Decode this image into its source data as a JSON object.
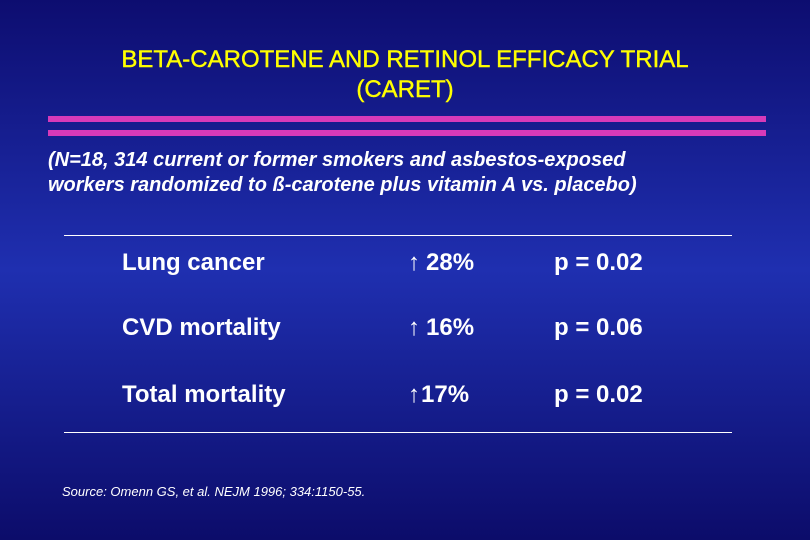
{
  "title": {
    "line1": "BETA-CAROTENE AND RETINOL EFFICACY TRIAL",
    "line2": "(CARET)"
  },
  "subtitle": {
    "line1": "(N=18, 314 current or former smokers and asbestos-exposed",
    "line2": "workers randomized to ß-carotene plus vitamin A vs. placebo)"
  },
  "results": [
    {
      "outcome": "Lung cancer",
      "direction_icon": "up-arrow-icon",
      "change": "28%",
      "p_value": "p = 0.02"
    },
    {
      "outcome": "CVD mortality",
      "direction_icon": "up-arrow-icon",
      "change": "16%",
      "p_value": "p = 0.06"
    },
    {
      "outcome": "Total mortality",
      "direction_icon": "up-arrow-icon",
      "change": "17%",
      "p_value": "p = 0.02"
    }
  ],
  "source": "Source:  Omenn GS, et al.  NEJM 1996; 334:1150-55.",
  "colors": {
    "background_dark": "#0d0d70",
    "background_mid": "#1f2fb0",
    "title": "#ffff00",
    "accent_bar": "#d63ab9",
    "text": "#ffffff"
  }
}
